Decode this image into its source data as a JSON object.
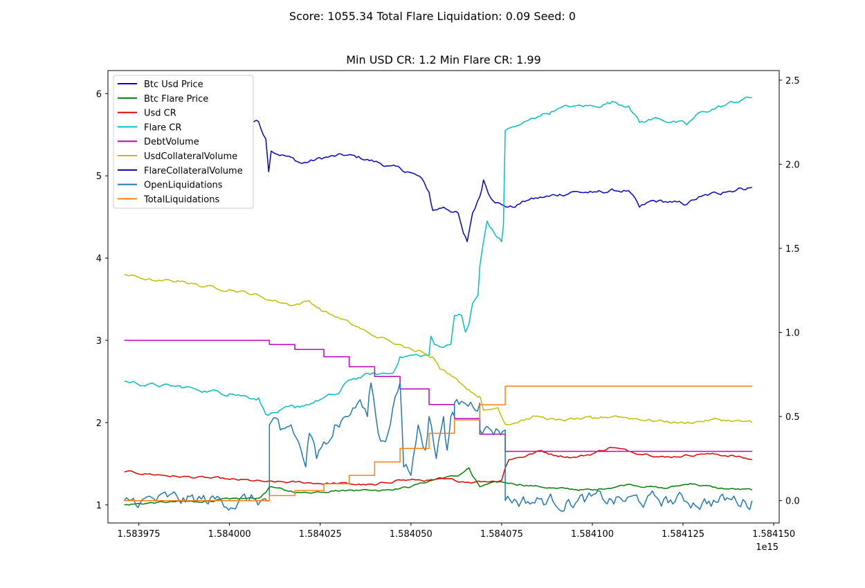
{
  "figure": {
    "suptitle": "Score: 1055.34 Total Flare Liquidation: 0.09 Seed: 0"
  },
  "chart_data": {
    "type": "line",
    "title": "Min USD CR: 1.2 Min Flare CR: 1.99",
    "x_offset_label": "1e15",
    "xlim": [
      1583966.5,
      1584151.5
    ],
    "ylim_left": [
      0.78,
      6.28
    ],
    "ylim_right": [
      -0.133,
      2.557
    ],
    "x_ticks": [
      {
        "value": 1583975,
        "label": "1.583975"
      },
      {
        "value": 1584000,
        "label": "1.584000"
      },
      {
        "value": 1584025,
        "label": "1.584025"
      },
      {
        "value": 1584050,
        "label": "1.584050"
      },
      {
        "value": 1584075,
        "label": "1.584075"
      },
      {
        "value": 1584100,
        "label": "1.584100"
      },
      {
        "value": 1584125,
        "label": "1.584125"
      },
      {
        "value": 1584150,
        "label": "1.584150"
      }
    ],
    "y_ticks_left": [
      {
        "value": 1,
        "label": "1"
      },
      {
        "value": 2,
        "label": "2"
      },
      {
        "value": 3,
        "label": "3"
      },
      {
        "value": 4,
        "label": "4"
      },
      {
        "value": 5,
        "label": "5"
      },
      {
        "value": 6,
        "label": "6"
      }
    ],
    "y_ticks_right": [
      {
        "value": 0.0,
        "label": "0.0"
      },
      {
        "value": 0.5,
        "label": "0.5"
      },
      {
        "value": 1.0,
        "label": "1.0"
      },
      {
        "value": 1.5,
        "label": "1.5"
      },
      {
        "value": 2.0,
        "label": "2.0"
      },
      {
        "value": 2.5,
        "label": "2.5"
      }
    ],
    "legend_position": "top-left",
    "grid": false,
    "series": [
      {
        "name": "Btc Usd Price",
        "color": "#0000cd",
        "axis": "left",
        "noise": 0.02,
        "points": [
          [
            1583971,
            6.02
          ],
          [
            1583978,
            5.95
          ],
          [
            1583985,
            5.86
          ],
          [
            1583992,
            5.82
          ],
          [
            1583998,
            5.73
          ],
          [
            1584003,
            5.7
          ],
          [
            1584008,
            5.66
          ],
          [
            1584010,
            5.45
          ],
          [
            1584010.8,
            5.05
          ],
          [
            1584011.5,
            5.3
          ],
          [
            1584015,
            5.25
          ],
          [
            1584020,
            5.15
          ],
          [
            1584026,
            5.22
          ],
          [
            1584032,
            5.25
          ],
          [
            1584038,
            5.2
          ],
          [
            1584044,
            5.12
          ],
          [
            1584049,
            5.05
          ],
          [
            1584053,
            4.97
          ],
          [
            1584055,
            4.8
          ],
          [
            1584056,
            4.58
          ],
          [
            1584059,
            4.62
          ],
          [
            1584063,
            4.55
          ],
          [
            1584064.5,
            4.3
          ],
          [
            1584065.5,
            4.2
          ],
          [
            1584067,
            4.55
          ],
          [
            1584069,
            4.75
          ],
          [
            1584070,
            4.95
          ],
          [
            1584072,
            4.73
          ],
          [
            1584075,
            4.65
          ],
          [
            1584078,
            4.62
          ],
          [
            1584082,
            4.7
          ],
          [
            1584088,
            4.75
          ],
          [
            1584094,
            4.8
          ],
          [
            1584100,
            4.8
          ],
          [
            1584106,
            4.82
          ],
          [
            1584110,
            4.82
          ],
          [
            1584113,
            4.62
          ],
          [
            1584117,
            4.7
          ],
          [
            1584122,
            4.68
          ],
          [
            1584126,
            4.65
          ],
          [
            1584130,
            4.75
          ],
          [
            1584136,
            4.8
          ],
          [
            1584141,
            4.85
          ],
          [
            1584144,
            4.86
          ]
        ]
      },
      {
        "name": "Btc Flare Price",
        "color": "#008000",
        "axis": "left",
        "noise": 0.01,
        "points": [
          [
            1583971,
            1.0
          ],
          [
            1583980,
            1.03
          ],
          [
            1583990,
            1.04
          ],
          [
            1584000,
            1.07
          ],
          [
            1584008,
            1.08
          ],
          [
            1584010,
            1.15
          ],
          [
            1584011,
            1.22
          ],
          [
            1584015,
            1.18
          ],
          [
            1584020,
            1.15
          ],
          [
            1584028,
            1.17
          ],
          [
            1584035,
            1.18
          ],
          [
            1584042,
            1.18
          ],
          [
            1584050,
            1.22
          ],
          [
            1584058,
            1.33
          ],
          [
            1584063,
            1.35
          ],
          [
            1584066,
            1.45
          ],
          [
            1584067,
            1.35
          ],
          [
            1584069,
            1.22
          ],
          [
            1584071,
            1.25
          ],
          [
            1584075,
            1.28
          ],
          [
            1584080,
            1.25
          ],
          [
            1584090,
            1.2
          ],
          [
            1584100,
            1.18
          ],
          [
            1584110,
            1.25
          ],
          [
            1584120,
            1.2
          ],
          [
            1584127,
            1.26
          ],
          [
            1584135,
            1.2
          ],
          [
            1584144,
            1.18
          ]
        ]
      },
      {
        "name": "Usd CR",
        "color": "#e00000",
        "axis": "left",
        "noise": 0.012,
        "points": [
          [
            1583971,
            1.4
          ],
          [
            1583985,
            1.35
          ],
          [
            1584000,
            1.31
          ],
          [
            1584010,
            1.28
          ],
          [
            1584020,
            1.27
          ],
          [
            1584030,
            1.26
          ],
          [
            1584040,
            1.24
          ],
          [
            1584046,
            1.3
          ],
          [
            1584055,
            1.3
          ],
          [
            1584062,
            1.3
          ],
          [
            1584068,
            1.28
          ],
          [
            1584075,
            1.3
          ],
          [
            1584076,
            1.45
          ],
          [
            1584077,
            1.55
          ],
          [
            1584082,
            1.6
          ],
          [
            1584086,
            1.66
          ],
          [
            1584090,
            1.6
          ],
          [
            1584095,
            1.58
          ],
          [
            1584100,
            1.62
          ],
          [
            1584105,
            1.7
          ],
          [
            1584110,
            1.65
          ],
          [
            1584115,
            1.62
          ],
          [
            1584120,
            1.58
          ],
          [
            1584130,
            1.62
          ],
          [
            1584138,
            1.6
          ],
          [
            1584144,
            1.55
          ]
        ]
      },
      {
        "name": "Flare CR",
        "color": "#00bfbf",
        "axis": "left",
        "noise": 0.02,
        "points": [
          [
            1583971,
            2.5
          ],
          [
            1583980,
            2.45
          ],
          [
            1583990,
            2.42
          ],
          [
            1584000,
            2.35
          ],
          [
            1584008,
            2.3
          ],
          [
            1584010,
            2.1
          ],
          [
            1584012,
            2.12
          ],
          [
            1584018,
            2.18
          ],
          [
            1584025,
            2.28
          ],
          [
            1584030,
            2.35
          ],
          [
            1584033,
            2.52
          ],
          [
            1584040,
            2.6
          ],
          [
            1584045,
            2.6
          ],
          [
            1584047,
            2.8
          ],
          [
            1584052,
            2.82
          ],
          [
            1584055,
            2.82
          ],
          [
            1584055.5,
            3.05
          ],
          [
            1584056.5,
            2.95
          ],
          [
            1584058,
            2.92
          ],
          [
            1584061,
            2.95
          ],
          [
            1584062,
            3.3
          ],
          [
            1584064,
            3.3
          ],
          [
            1584065,
            3.1
          ],
          [
            1584066,
            3.2
          ],
          [
            1584067,
            3.45
          ],
          [
            1584068.5,
            3.55
          ],
          [
            1584069,
            3.9
          ],
          [
            1584070,
            4.2
          ],
          [
            1584071,
            4.45
          ],
          [
            1584073,
            4.3
          ],
          [
            1584075,
            4.2
          ],
          [
            1584075.5,
            4.4
          ],
          [
            1584076,
            5.55
          ],
          [
            1584080,
            5.62
          ],
          [
            1584085,
            5.72
          ],
          [
            1584090,
            5.8
          ],
          [
            1584095,
            5.85
          ],
          [
            1584100,
            5.85
          ],
          [
            1584106,
            5.9
          ],
          [
            1584110,
            5.85
          ],
          [
            1584113,
            5.65
          ],
          [
            1584118,
            5.7
          ],
          [
            1584123,
            5.65
          ],
          [
            1584126,
            5.62
          ],
          [
            1584130,
            5.78
          ],
          [
            1584136,
            5.85
          ],
          [
            1584141,
            5.92
          ],
          [
            1584144,
            5.95
          ]
        ]
      },
      {
        "name": "DebtVolume",
        "color": "#bf00bf",
        "axis": "left",
        "noise": 0,
        "points": [
          [
            1583971,
            3.0
          ],
          [
            1584011,
            3.0
          ],
          [
            1584011,
            2.95
          ],
          [
            1584018,
            2.95
          ],
          [
            1584018,
            2.89
          ],
          [
            1584026,
            2.89
          ],
          [
            1584026,
            2.8
          ],
          [
            1584033,
            2.8
          ],
          [
            1584033,
            2.68
          ],
          [
            1584040,
            2.68
          ],
          [
            1584040,
            2.56
          ],
          [
            1584047,
            2.56
          ],
          [
            1584047,
            2.41
          ],
          [
            1584055,
            2.41
          ],
          [
            1584055,
            2.22
          ],
          [
            1584062,
            2.22
          ],
          [
            1584062,
            2.05
          ],
          [
            1584069,
            2.05
          ],
          [
            1584069,
            1.86
          ],
          [
            1584076,
            1.86
          ],
          [
            1584076,
            1.65
          ],
          [
            1584144,
            1.65
          ]
        ]
      },
      {
        "name": "UsdCollateralVolume",
        "color": "#bfbf00",
        "axis": "left",
        "noise": 0.015,
        "points": [
          [
            1583971,
            3.8
          ],
          [
            1583980,
            3.72
          ],
          [
            1583987,
            3.72
          ],
          [
            1583993,
            3.65
          ],
          [
            1584000,
            3.62
          ],
          [
            1584008,
            3.55
          ],
          [
            1584012,
            3.48
          ],
          [
            1584018,
            3.43
          ],
          [
            1584022,
            3.48
          ],
          [
            1584026,
            3.35
          ],
          [
            1584033,
            3.22
          ],
          [
            1584038,
            3.1
          ],
          [
            1584040,
            3.05
          ],
          [
            1584044,
            3.0
          ],
          [
            1584048,
            2.92
          ],
          [
            1584052,
            2.88
          ],
          [
            1584056,
            2.8
          ],
          [
            1584058,
            2.65
          ],
          [
            1584062,
            2.55
          ],
          [
            1584066,
            2.4
          ],
          [
            1584069,
            2.32
          ],
          [
            1584070,
            2.15
          ],
          [
            1584074,
            2.18
          ],
          [
            1584076,
            1.98
          ],
          [
            1584080,
            2.02
          ],
          [
            1584085,
            2.08
          ],
          [
            1584090,
            2.03
          ],
          [
            1584100,
            2.05
          ],
          [
            1584106,
            2.08
          ],
          [
            1584112,
            2.05
          ],
          [
            1584118,
            2.02
          ],
          [
            1584125,
            2.0
          ],
          [
            1584135,
            2.04
          ],
          [
            1584144,
            2.0
          ]
        ]
      },
      {
        "name": "FlareCollateralVolume",
        "color": "#00008b",
        "axis": "left",
        "noise": 0,
        "points": []
      },
      {
        "name": "OpenLiquidations",
        "color": "#1f77b4",
        "axis": "right",
        "noise": 0.035,
        "points": [
          [
            1583971,
            0.0
          ],
          [
            1584011,
            0.0
          ],
          [
            1584011,
            0.45
          ],
          [
            1584014,
            0.42
          ],
          [
            1584017,
            0.45
          ],
          [
            1584019,
            0.35
          ],
          [
            1584021,
            0.2
          ],
          [
            1584022,
            0.4
          ],
          [
            1584024,
            0.25
          ],
          [
            1584026,
            0.35
          ],
          [
            1584029,
            0.45
          ],
          [
            1584032,
            0.5
          ],
          [
            1584034,
            0.55
          ],
          [
            1584036,
            0.6
          ],
          [
            1584038,
            0.5
          ],
          [
            1584039,
            0.7
          ],
          [
            1584041,
            0.4
          ],
          [
            1584043,
            0.35
          ],
          [
            1584045,
            0.55
          ],
          [
            1584047,
            0.7
          ],
          [
            1584048,
            0.2
          ],
          [
            1584050,
            0.15
          ],
          [
            1584052,
            0.45
          ],
          [
            1584054,
            0.3
          ],
          [
            1584055,
            0.5
          ],
          [
            1584057,
            0.25
          ],
          [
            1584059,
            0.5
          ],
          [
            1584060,
            0.3
          ],
          [
            1584061,
            0.5
          ],
          [
            1584062,
            0.5
          ],
          [
            1584062,
            0.58
          ],
          [
            1584069,
            0.58
          ],
          [
            1584069,
            0.42
          ],
          [
            1584076,
            0.42
          ],
          [
            1584076,
            0.0
          ],
          [
            1584144,
            0.0
          ]
        ]
      },
      {
        "name": "TotalLiquidations",
        "color": "#ff7f0e",
        "axis": "right",
        "noise": 0,
        "points": [
          [
            1583971,
            0.0
          ],
          [
            1584011,
            0.0
          ],
          [
            1584011,
            0.03
          ],
          [
            1584018,
            0.03
          ],
          [
            1584018,
            0.06
          ],
          [
            1584026,
            0.06
          ],
          [
            1584026,
            0.1
          ],
          [
            1584033,
            0.1
          ],
          [
            1584033,
            0.15
          ],
          [
            1584040,
            0.15
          ],
          [
            1584040,
            0.23
          ],
          [
            1584047,
            0.23
          ],
          [
            1584047,
            0.31
          ],
          [
            1584055,
            0.31
          ],
          [
            1584055,
            0.4
          ],
          [
            1584062,
            0.4
          ],
          [
            1584062,
            0.48
          ],
          [
            1584069,
            0.48
          ],
          [
            1584069,
            0.57
          ],
          [
            1584076,
            0.57
          ],
          [
            1584076,
            0.68
          ],
          [
            1584144,
            0.68
          ]
        ]
      }
    ]
  }
}
